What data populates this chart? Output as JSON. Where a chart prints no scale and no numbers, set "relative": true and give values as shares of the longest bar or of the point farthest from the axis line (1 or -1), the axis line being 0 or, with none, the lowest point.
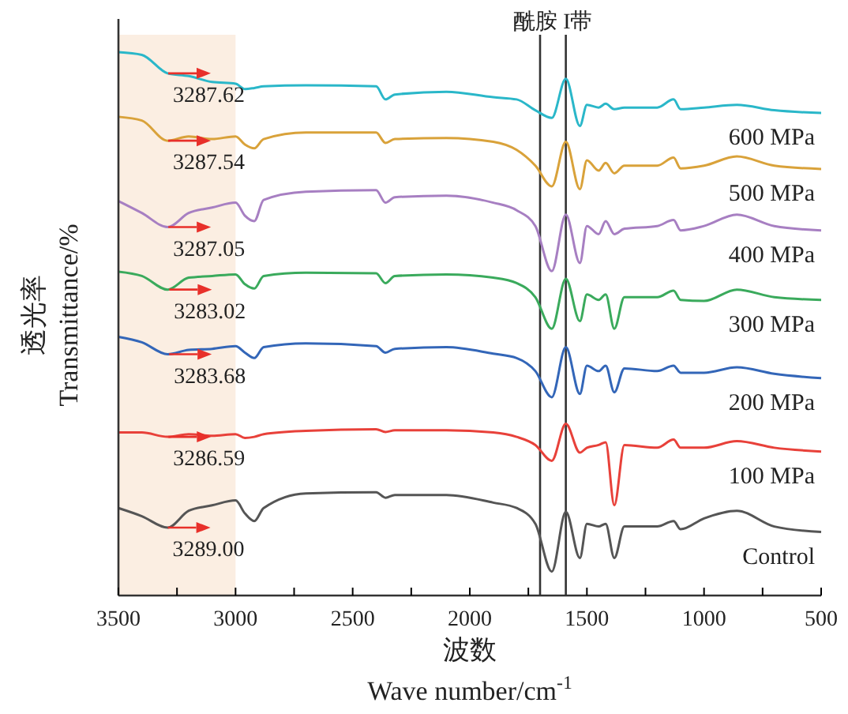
{
  "chart_data": {
    "type": "line",
    "relative": true,
    "xlabel": "波数\nWave number/cm$^{-1}$",
    "ylabel": "透光率\nTransmittance/%",
    "xlim": [
      3500,
      500
    ],
    "xticks": [
      3500,
      {
        "value": 3250,
        "label": null
      },
      3000,
      {
        "value": 2750,
        "label": null
      },
      2500,
      {
        "value": 2250,
        "label": null
      },
      2000,
      {
        "value": 1750,
        "label": null
      },
      1500,
      {
        "value": 1250,
        "label": null
      },
      1000,
      {
        "value": 750,
        "label": null
      },
      500
    ],
    "grid": false,
    "x": [
      3500,
      3400,
      3290,
      3200,
      3100,
      3000,
      2960,
      2920,
      2880,
      2700,
      2400,
      2360,
      2320,
      2100,
      1900,
      1800,
      1720,
      1650,
      1590,
      1530,
      1500,
      1450,
      1420,
      1383,
      1340,
      1200,
      1130,
      1100,
      1000,
      860,
      700,
      500
    ],
    "series": [
      {
        "name": "600 MPa",
        "color": "#2ab7c9",
        "values": [
          1.0,
          0.995,
          0.961,
          0.956,
          0.945,
          0.942,
          0.932,
          0.934,
          0.937,
          0.939,
          0.937,
          0.913,
          0.922,
          0.927,
          0.917,
          0.913,
          0.893,
          0.879,
          0.951,
          0.864,
          0.903,
          0.898,
          0.905,
          0.895,
          0.898,
          0.898,
          0.913,
          0.895,
          0.898,
          0.903,
          0.893,
          0.888
        ]
      },
      {
        "name": "500 MPa",
        "color": "#d9a23a",
        "values": [
          0.881,
          0.874,
          0.837,
          0.845,
          0.84,
          0.845,
          0.83,
          0.823,
          0.84,
          0.852,
          0.852,
          0.833,
          0.84,
          0.842,
          0.835,
          0.82,
          0.791,
          0.753,
          0.835,
          0.748,
          0.801,
          0.782,
          0.796,
          0.777,
          0.791,
          0.791,
          0.806,
          0.786,
          0.791,
          0.808,
          0.791,
          0.785
        ]
      },
      {
        "name": "400 MPa",
        "color": "#a77fc2",
        "values": [
          0.726,
          0.704,
          0.678,
          0.704,
          0.714,
          0.723,
          0.699,
          0.689,
          0.728,
          0.743,
          0.746,
          0.723,
          0.733,
          0.736,
          0.723,
          0.709,
          0.68,
          0.597,
          0.701,
          0.612,
          0.68,
          0.665,
          0.689,
          0.665,
          0.675,
          0.68,
          0.691,
          0.672,
          0.68,
          0.701,
          0.68,
          0.672
        ]
      },
      {
        "name": "300 MPa",
        "color": "#3aaa5c",
        "values": [
          0.596,
          0.588,
          0.563,
          0.585,
          0.588,
          0.591,
          0.573,
          0.565,
          0.588,
          0.594,
          0.593,
          0.575,
          0.588,
          0.591,
          0.585,
          0.575,
          0.549,
          0.491,
          0.583,
          0.505,
          0.554,
          0.544,
          0.554,
          0.491,
          0.549,
          0.549,
          0.561,
          0.544,
          0.542,
          0.563,
          0.549,
          0.544
        ]
      },
      {
        "name": "200 MPa",
        "color": "#3366b8",
        "values": [
          0.476,
          0.466,
          0.444,
          0.452,
          0.454,
          0.459,
          0.447,
          0.437,
          0.457,
          0.464,
          0.459,
          0.447,
          0.454,
          0.457,
          0.445,
          0.437,
          0.413,
          0.365,
          0.457,
          0.371,
          0.423,
          0.413,
          0.423,
          0.374,
          0.418,
          0.413,
          0.423,
          0.41,
          0.41,
          0.42,
          0.408,
          0.4
        ]
      },
      {
        "name": "100 MPa",
        "color": "#e8413a",
        "values": [
          0.3,
          0.3,
          0.292,
          0.297,
          0.294,
          0.297,
          0.29,
          0.292,
          0.297,
          0.303,
          0.306,
          0.301,
          0.304,
          0.304,
          0.3,
          0.292,
          0.277,
          0.248,
          0.316,
          0.263,
          0.272,
          0.277,
          0.282,
          0.166,
          0.277,
          0.272,
          0.287,
          0.272,
          0.272,
          0.284,
          0.272,
          0.265
        ]
      },
      {
        "name": "Control",
        "color": "#555555",
        "values": [
          0.161,
          0.146,
          0.125,
          0.156,
          0.166,
          0.175,
          0.151,
          0.137,
          0.161,
          0.188,
          0.19,
          0.18,
          0.185,
          0.185,
          0.171,
          0.161,
          0.132,
          0.044,
          0.154,
          0.069,
          0.132,
          0.127,
          0.132,
          0.069,
          0.127,
          0.127,
          0.137,
          0.122,
          0.142,
          0.156,
          0.127,
          0.117
        ]
      }
    ],
    "bands": [
      {
        "axis": "x",
        "from": 3500,
        "to": 3000,
        "color": "#fbeee2"
      }
    ],
    "ref_lines": [
      {
        "axis": "x",
        "value": 1700,
        "color": "#333333"
      },
      {
        "axis": "x",
        "value": 1590,
        "color": "#333333"
      }
    ],
    "annotations": [
      {
        "text": "3287.62",
        "x": 3287.62,
        "y": 0.961
      },
      {
        "text": "3287.54",
        "x": 3287.54,
        "y": 0.837
      },
      {
        "text": "3287.05",
        "x": 3287.05,
        "y": 0.678
      },
      {
        "text": "3283.02",
        "x": 3283.02,
        "y": 0.563
      },
      {
        "text": "3283.68",
        "x": 3283.68,
        "y": 0.444
      },
      {
        "text": "3286.59",
        "x": 3286.59,
        "y": 0.292
      },
      {
        "text": "3289.00",
        "x": 3289.0,
        "y": 0.125
      },
      "酰胺 I带"
    ]
  }
}
